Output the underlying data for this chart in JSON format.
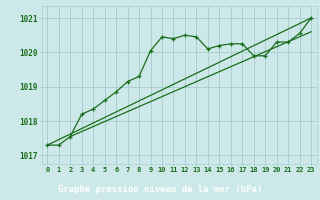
{
  "main_line": [
    [
      0,
      1017.3
    ],
    [
      1,
      1017.3
    ],
    [
      2,
      1017.55
    ],
    [
      3,
      1018.2
    ],
    [
      4,
      1018.35
    ],
    [
      5,
      1018.6
    ],
    [
      6,
      1018.85
    ],
    [
      7,
      1019.15
    ],
    [
      8,
      1019.3
    ],
    [
      9,
      1020.05
    ],
    [
      10,
      1020.45
    ],
    [
      11,
      1020.4
    ],
    [
      12,
      1020.5
    ],
    [
      13,
      1020.45
    ],
    [
      14,
      1020.1
    ],
    [
      15,
      1020.2
    ],
    [
      16,
      1020.25
    ],
    [
      17,
      1020.25
    ],
    [
      18,
      1019.9
    ],
    [
      19,
      1019.9
    ],
    [
      20,
      1020.3
    ],
    [
      21,
      1020.3
    ],
    [
      22,
      1020.55
    ],
    [
      23,
      1021.0
    ]
  ],
  "reg_line1": [
    [
      0,
      1017.3
    ],
    [
      23,
      1021.0
    ]
  ],
  "reg_line2": [
    [
      2,
      1017.55
    ],
    [
      23,
      1020.6
    ]
  ],
  "bg_color": "#cce8e8",
  "grid_color": "#aad0d0",
  "line_color": "#1a6e1a",
  "footer_bg": "#2d6e2d",
  "footer_text_color": "#ffffff",
  "ylabel_ticks": [
    1017,
    1018,
    1019,
    1020,
    1021
  ],
  "xlabel": "Graphe pression niveau de la mer (hPa)",
  "xlim": [
    -0.5,
    23.5
  ],
  "ylim": [
    1016.75,
    1021.35
  ],
  "xtick_labels": [
    "0",
    "1",
    "2",
    "3",
    "4",
    "5",
    "6",
    "7",
    "8",
    "9",
    "10",
    "11",
    "12",
    "13",
    "14",
    "15",
    "16",
    "17",
    "18",
    "19",
    "20",
    "21",
    "22",
    "23"
  ]
}
